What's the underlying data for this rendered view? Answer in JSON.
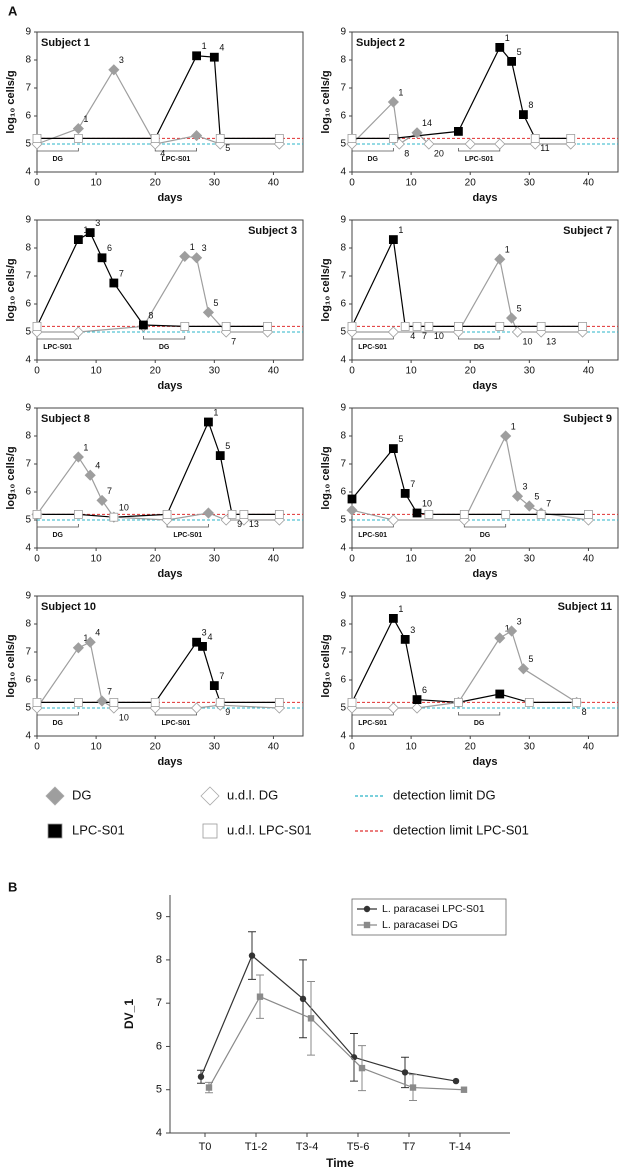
{
  "panel_labels": [
    "A",
    "B"
  ],
  "legend": [
    {
      "name": "DG",
      "marker": "diamond",
      "fill": "#9e9e9e"
    },
    {
      "name": "u.d.l. DG",
      "marker": "diamond",
      "fill": "#ffffff"
    },
    {
      "name": "detection limit DG",
      "marker": "dashed",
      "color": "#2bb5c8"
    },
    {
      "name": "LPC-S01",
      "marker": "square",
      "fill": "#000000"
    },
    {
      "name": "u.d.l. LPC-S01",
      "marker": "square",
      "fill": "#ffffff"
    },
    {
      "name": "detection limit LPC-S01",
      "marker": "dashed",
      "color": "#e03030"
    }
  ],
  "detection_limits": {
    "dg": 5.0,
    "lpc": 5.2
  },
  "chart_data": [
    {
      "type": "line",
      "title": "Subject 1",
      "xlabel": "days",
      "ylabel": "log₁₀ cells/g",
      "xlim": [
        0,
        45
      ],
      "ylim": [
        4,
        9
      ],
      "xticks": [
        0,
        10,
        20,
        30,
        40
      ],
      "yticks": [
        4,
        5,
        6,
        7,
        8,
        9
      ],
      "periods": [
        {
          "label": "DG",
          "x": [
            0,
            7
          ]
        },
        {
          "label": "LPC-S01",
          "x": [
            20,
            27
          ]
        }
      ],
      "dg": {
        "color": "#9e9e9e",
        "x": [
          0,
          7,
          13,
          20,
          27,
          31,
          41
        ],
        "values": [
          5,
          5.55,
          7.65,
          5,
          5.3,
          5,
          5
        ],
        "detected": [
          false,
          true,
          true,
          false,
          true,
          false,
          false
        ],
        "labels": [
          null,
          1,
          3,
          4,
          null,
          null,
          null
        ]
      },
      "lpc": {
        "color": "#000000",
        "x": [
          0,
          7,
          20,
          27,
          30,
          31,
          41
        ],
        "values": [
          5.2,
          5.2,
          5.2,
          8.15,
          8.1,
          5.2,
          5.2
        ],
        "detected": [
          false,
          false,
          false,
          true,
          true,
          false,
          false
        ],
        "labels": [
          null,
          null,
          null,
          1,
          4,
          5,
          null
        ]
      }
    },
    {
      "type": "line",
      "title": "Subject 2",
      "xlabel": "days",
      "ylabel": "log₁₀ cells/g",
      "xlim": [
        0,
        45
      ],
      "ylim": [
        4,
        9
      ],
      "xticks": [
        0,
        10,
        20,
        30,
        40
      ],
      "yticks": [
        4,
        5,
        6,
        7,
        8,
        9
      ],
      "periods": [
        {
          "label": "DG",
          "x": [
            0,
            7
          ]
        },
        {
          "label": "LPC-S01",
          "x": [
            18,
            25
          ]
        }
      ],
      "dg": {
        "color": "#9e9e9e",
        "x": [
          0,
          7,
          8,
          11,
          13,
          20,
          25,
          31,
          37
        ],
        "values": [
          5,
          6.5,
          5,
          5.4,
          5,
          5,
          5,
          5,
          5
        ],
        "detected": [
          false,
          true,
          false,
          true,
          false,
          false,
          false,
          false,
          false
        ],
        "labels": [
          null,
          1,
          8,
          14,
          20,
          null,
          null,
          null,
          null
        ]
      },
      "lpc": {
        "color": "#000000",
        "x": [
          0,
          7,
          18,
          25,
          27,
          29,
          31,
          37
        ],
        "values": [
          5.2,
          5.2,
          5.45,
          8.45,
          7.95,
          6.05,
          5.2,
          5.2
        ],
        "detected": [
          false,
          false,
          true,
          true,
          true,
          true,
          false,
          false
        ],
        "labels": [
          null,
          null,
          null,
          1,
          5,
          8,
          11,
          null
        ]
      }
    },
    {
      "type": "line",
      "title": "Subject 3",
      "xlabel": "days",
      "ylabel": "log₁₀ cells/g",
      "xlim": [
        0,
        45
      ],
      "ylim": [
        4,
        9
      ],
      "xticks": [
        0,
        10,
        20,
        30,
        40
      ],
      "yticks": [
        4,
        5,
        6,
        7,
        8,
        9
      ],
      "periods": [
        {
          "label": "LPC-S01",
          "x": [
            0,
            7
          ]
        },
        {
          "label": "DG",
          "x": [
            18,
            25
          ]
        }
      ],
      "dg": {
        "color": "#9e9e9e",
        "x": [
          0,
          7,
          18,
          25,
          27,
          29,
          32,
          39
        ],
        "values": [
          5,
          5,
          5.2,
          7.7,
          7.65,
          5.7,
          5,
          5
        ],
        "detected": [
          false,
          false,
          false,
          true,
          true,
          true,
          false,
          false
        ],
        "labels": [
          null,
          null,
          null,
          1,
          3,
          5,
          7,
          null
        ]
      },
      "lpc": {
        "color": "#000000",
        "x": [
          0,
          7,
          9,
          11,
          13,
          18,
          25,
          32,
          39
        ],
        "values": [
          5.2,
          8.3,
          8.55,
          7.65,
          6.75,
          5.25,
          5.2,
          5.2,
          5.2
        ],
        "detected": [
          false,
          true,
          true,
          true,
          true,
          true,
          false,
          false,
          false
        ],
        "labels": [
          null,
          1,
          3,
          6,
          7,
          8,
          null,
          null,
          null
        ]
      }
    },
    {
      "type": "line",
      "title": "Subject 7",
      "xlabel": "days",
      "ylabel": "log₁₀ cells/g",
      "xlim": [
        0,
        45
      ],
      "ylim": [
        4,
        9
      ],
      "xticks": [
        0,
        10,
        20,
        30,
        40
      ],
      "yticks": [
        4,
        5,
        6,
        7,
        8,
        9
      ],
      "periods": [
        {
          "label": "LPC-S01",
          "x": [
            0,
            7
          ]
        },
        {
          "label": "DG",
          "x": [
            18,
            25
          ]
        }
      ],
      "dg": {
        "color": "#9e9e9e",
        "x": [
          0,
          7,
          18,
          25,
          27,
          28,
          32,
          39
        ],
        "values": [
          5,
          5,
          5,
          7.6,
          5.5,
          5,
          5,
          5
        ],
        "detected": [
          false,
          false,
          false,
          true,
          true,
          false,
          false,
          false
        ],
        "labels": [
          null,
          null,
          null,
          1,
          5,
          10,
          13,
          null
        ]
      },
      "lpc": {
        "color": "#000000",
        "x": [
          0,
          7,
          9,
          11,
          13,
          18,
          25,
          32,
          39
        ],
        "values": [
          5.2,
          8.3,
          5.2,
          5.2,
          5.2,
          5.2,
          5.2,
          5.2,
          5.2
        ],
        "detected": [
          false,
          true,
          false,
          false,
          false,
          false,
          false,
          false,
          false
        ],
        "labels": [
          null,
          1,
          4,
          7,
          10,
          null,
          null,
          null,
          null
        ]
      }
    },
    {
      "type": "line",
      "title": "Subject 8",
      "xlabel": "days",
      "ylabel": "log₁₀ cells/g",
      "xlim": [
        0,
        45
      ],
      "ylim": [
        4,
        9
      ],
      "xticks": [
        0,
        10,
        20,
        30,
        40
      ],
      "yticks": [
        4,
        5,
        6,
        7,
        8,
        9
      ],
      "periods": [
        {
          "label": "DG",
          "x": [
            0,
            7
          ]
        },
        {
          "label": "LPC-S01",
          "x": [
            22,
            29
          ]
        }
      ],
      "dg": {
        "color": "#9e9e9e",
        "x": [
          0,
          7,
          9,
          11,
          13,
          22,
          29,
          32,
          35,
          41
        ],
        "values": [
          5.2,
          7.25,
          6.6,
          5.7,
          5.1,
          5,
          5.25,
          5,
          5,
          5
        ],
        "detected": [
          false,
          true,
          true,
          true,
          true,
          false,
          true,
          false,
          false,
          false
        ],
        "labels": [
          null,
          1,
          4,
          7,
          10,
          null,
          null,
          null,
          null,
          null
        ]
      },
      "lpc": {
        "color": "#000000",
        "x": [
          0,
          7,
          13,
          22,
          29,
          31,
          33,
          35,
          41
        ],
        "values": [
          5.2,
          5.2,
          5.1,
          5.2,
          8.5,
          7.3,
          5.2,
          5.2,
          5.2
        ],
        "detected": [
          false,
          false,
          false,
          false,
          true,
          true,
          false,
          false,
          false
        ],
        "labels": [
          null,
          null,
          null,
          null,
          1,
          5,
          9,
          13,
          null
        ]
      }
    },
    {
      "type": "line",
      "title": "Subject 9",
      "xlabel": "days",
      "ylabel": "log₁₀ cells/g",
      "xlim": [
        0,
        45
      ],
      "ylim": [
        4,
        9
      ],
      "xticks": [
        0,
        10,
        20,
        30,
        40
      ],
      "yticks": [
        4,
        5,
        6,
        7,
        8,
        9
      ],
      "periods": [
        {
          "label": "LPC-S01",
          "x": [
            0,
            7
          ]
        },
        {
          "label": "DG",
          "x": [
            19,
            26
          ]
        }
      ],
      "dg": {
        "color": "#9e9e9e",
        "x": [
          0,
          7,
          19,
          26,
          28,
          30,
          32,
          40
        ],
        "values": [
          5.35,
          5,
          5,
          8,
          5.85,
          5.5,
          5.25,
          5
        ],
        "detected": [
          true,
          false,
          false,
          true,
          true,
          true,
          true,
          false
        ],
        "labels": [
          null,
          null,
          null,
          1,
          3,
          5,
          7,
          null
        ]
      },
      "lpc": {
        "color": "#000000",
        "x": [
          0,
          7,
          9,
          11,
          13,
          19,
          26,
          32,
          40
        ],
        "values": [
          5.75,
          7.55,
          5.95,
          5.25,
          5.2,
          5.2,
          5.2,
          5.2,
          5.2
        ],
        "detected": [
          true,
          true,
          true,
          true,
          false,
          false,
          false,
          false,
          false
        ],
        "labels": [
          null,
          5,
          7,
          10,
          null,
          null,
          null,
          null,
          null
        ]
      }
    },
    {
      "type": "line",
      "title": "Subject 10",
      "xlabel": "days",
      "ylabel": "log₁₀ cells/g",
      "xlim": [
        0,
        45
      ],
      "ylim": [
        4,
        9
      ],
      "xticks": [
        0,
        10,
        20,
        30,
        40
      ],
      "yticks": [
        4,
        5,
        6,
        7,
        8,
        9
      ],
      "periods": [
        {
          "label": "DG",
          "x": [
            0,
            7
          ]
        },
        {
          "label": "LPC-S01",
          "x": [
            20,
            27
          ]
        }
      ],
      "dg": {
        "color": "#9e9e9e",
        "x": [
          0,
          7,
          9,
          11,
          13,
          20,
          27,
          31,
          41
        ],
        "values": [
          5,
          7.15,
          7.35,
          5.25,
          5,
          5,
          5,
          5.1,
          5
        ],
        "detected": [
          false,
          true,
          true,
          true,
          false,
          false,
          false,
          false,
          false
        ],
        "labels": [
          null,
          1,
          4,
          7,
          10,
          null,
          null,
          null,
          null
        ]
      },
      "lpc": {
        "color": "#000000",
        "x": [
          0,
          7,
          13,
          20,
          27,
          28,
          30,
          31,
          41
        ],
        "values": [
          5.2,
          5.2,
          5.2,
          5.2,
          7.35,
          7.2,
          5.8,
          5.2,
          5.2
        ],
        "detected": [
          false,
          false,
          false,
          false,
          true,
          true,
          true,
          false,
          false
        ],
        "labels": [
          null,
          null,
          null,
          null,
          3,
          4,
          7,
          9,
          null
        ]
      }
    },
    {
      "type": "line",
      "title": "Subject 11",
      "xlabel": "days",
      "ylabel": "log₁₀ cells/g",
      "xlim": [
        0,
        45
      ],
      "ylim": [
        4,
        9
      ],
      "xticks": [
        0,
        10,
        20,
        30,
        40
      ],
      "yticks": [
        4,
        5,
        6,
        7,
        8,
        9
      ],
      "periods": [
        {
          "label": "LPC-S01",
          "x": [
            0,
            7
          ]
        },
        {
          "label": "DG",
          "x": [
            18,
            25
          ]
        }
      ],
      "dg": {
        "color": "#9e9e9e",
        "x": [
          0,
          7,
          11,
          18,
          25,
          27,
          29,
          38
        ],
        "values": [
          5,
          5,
          5,
          5.2,
          7.5,
          7.75,
          6.4,
          5.2
        ],
        "detected": [
          false,
          false,
          false,
          true,
          true,
          true,
          true,
          false
        ],
        "labels": [
          null,
          null,
          null,
          null,
          1,
          3,
          5,
          8
        ]
      },
      "lpc": {
        "color": "#000000",
        "x": [
          0,
          7,
          9,
          11,
          18,
          25,
          30,
          38
        ],
        "values": [
          5.2,
          8.2,
          7.45,
          5.3,
          5.2,
          5.5,
          5.2,
          5.2
        ],
        "detected": [
          false,
          true,
          true,
          true,
          false,
          true,
          false,
          false
        ],
        "labels": [
          null,
          1,
          3,
          6,
          null,
          null,
          null,
          null
        ]
      }
    },
    {
      "type": "errorbar",
      "xlabel": "Time",
      "ylabel": "DV_1",
      "categories": [
        "T0",
        "T1-2",
        "T3-4",
        "T5-6",
        "T7",
        "T-14"
      ],
      "ylim": [
        4,
        9.5
      ],
      "yticks": [
        4,
        5,
        6,
        7,
        8,
        9
      ],
      "legend": "upper right",
      "series": [
        {
          "name": "L. paracasei LPC-S01",
          "color": "#333333",
          "marker": "circle",
          "values": [
            5.3,
            8.1,
            7.1,
            5.75,
            5.4,
            5.2
          ],
          "errors": [
            0.15,
            0.55,
            0.9,
            0.55,
            0.35,
            null
          ]
        },
        {
          "name": "L. paracasei DG",
          "color": "#8a8a8a",
          "marker": "square",
          "values": [
            5.05,
            7.15,
            6.65,
            5.5,
            5.05,
            5.0
          ],
          "errors": [
            0.12,
            0.5,
            0.85,
            0.52,
            0.3,
            null
          ]
        }
      ]
    }
  ]
}
